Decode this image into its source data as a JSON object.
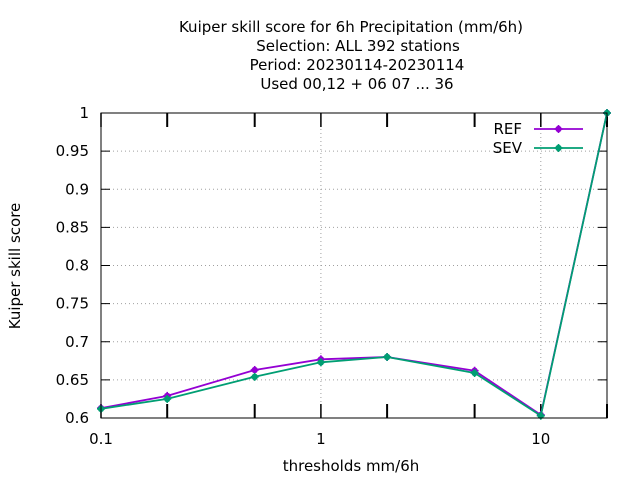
{
  "chart_data": {
    "type": "line",
    "title_lines": [
      "Kuiper skill score  for 6h Precipitation (mm/6h)",
      "Selection: ALL    392 stations",
      "Period: 20230114-20230114",
      "Used  00,12  + 06 07 ... 36"
    ],
    "xlabel": "thresholds mm/6h",
    "ylabel": "Kuiper skill score",
    "x_scale": "log",
    "xlim": [
      0.1,
      20
    ],
    "ylim": [
      0.6,
      1.0
    ],
    "x_ticks": [
      {
        "value": 0.1,
        "label": "0.1"
      },
      {
        "value": 1,
        "label": "1"
      },
      {
        "value": 10,
        "label": "10"
      }
    ],
    "x_minor_ticks": [
      0.2,
      0.5,
      2,
      5,
      20
    ],
    "y_ticks": [
      {
        "value": 0.6,
        "label": "0.6"
      },
      {
        "value": 0.65,
        "label": "0.65"
      },
      {
        "value": 0.7,
        "label": "0.7"
      },
      {
        "value": 0.75,
        "label": "0.75"
      },
      {
        "value": 0.8,
        "label": "0.8"
      },
      {
        "value": 0.85,
        "label": "0.85"
      },
      {
        "value": 0.9,
        "label": "0.9"
      },
      {
        "value": 0.95,
        "label": "0.95"
      },
      {
        "value": 1.0,
        "label": "1"
      }
    ],
    "grid": true,
    "legend_position": "top-right",
    "series": [
      {
        "name": "REF",
        "color": "#9400d3",
        "x": [
          0.1,
          0.2,
          0.5,
          1,
          2,
          5,
          10,
          20
        ],
        "y": [
          0.613,
          0.629,
          0.663,
          0.677,
          0.68,
          0.662,
          0.604,
          1.0
        ]
      },
      {
        "name": "SEV",
        "color": "#009e73",
        "x": [
          0.1,
          0.2,
          0.5,
          1,
          2,
          5,
          10,
          20
        ],
        "y": [
          0.612,
          0.625,
          0.654,
          0.673,
          0.68,
          0.659,
          0.603,
          1.0
        ]
      }
    ]
  }
}
